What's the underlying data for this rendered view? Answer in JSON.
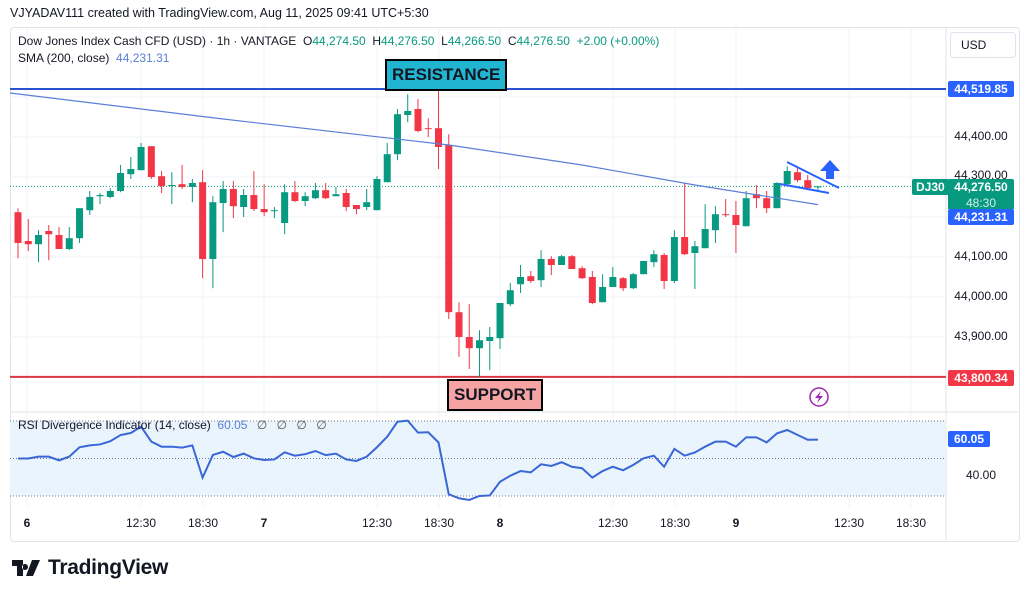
{
  "credit": "VJYADAV111 created with TradingView.com, Aug 11, 2025 09:41 UTC+5:30",
  "legend": {
    "symbol": "Dow Jones Index Cash CFD (USD) · 1h · VANTAGE",
    "o_label": "O",
    "o": "44,274.50",
    "h_label": "H",
    "h": "44,276.50",
    "l_label": "L",
    "l": "44,266.50",
    "c_label": "C",
    "c": "44,276.50",
    "change": "+2.00 (+0.00%)",
    "sma_label": "SMA (200, close)",
    "sma_value": "44,231.31"
  },
  "currency": "USD",
  "annotations": {
    "resistance": "RESISTANCE",
    "support": "SUPPORT"
  },
  "price_labels": {
    "resistance": "44,519.85",
    "support": "43,800.34",
    "last": "44,276.50",
    "countdown": "48:30",
    "sma": "44,231.31",
    "symbol_tag": "DJ30"
  },
  "price_axis": [
    "44,400.00",
    "44,300.00",
    "44,100.00",
    "44,000.00",
    "43,900.00"
  ],
  "rsi": {
    "label": "RSI Divergence Indicator (14, close)",
    "value": "60.05",
    "extras": [
      "∅",
      "∅",
      "∅",
      "∅"
    ],
    "axis": [
      "40.00"
    ],
    "value_label": "60.05"
  },
  "time_axis": [
    "6",
    "12:30",
    "18:30",
    "7",
    "12:30",
    "18:30",
    "8",
    "12:30",
    "18:30",
    "9",
    "12:30",
    "18:30"
  ],
  "logo": "TradingView",
  "colors": {
    "up": "#089981",
    "down": "#f23645",
    "blue": "#2962ff",
    "sma": "#5b7fd6"
  },
  "chart_data": {
    "type": "candlestick",
    "interval": "1h",
    "price_range": [
      43750,
      44550
    ],
    "resistance": 44519.85,
    "support": 43800.34,
    "last_price": 44276.5,
    "ohlc": [
      [
        44212,
        44222,
        44097,
        44135
      ],
      [
        44140,
        44195,
        44115,
        44132
      ],
      [
        44132,
        44167,
        44087,
        44155
      ],
      [
        44165,
        44180,
        44092,
        44157
      ],
      [
        44155,
        44175,
        44120,
        44120
      ],
      [
        44120,
        44175,
        44117,
        44147
      ],
      [
        44147,
        44222,
        44135,
        44222
      ],
      [
        44217,
        44265,
        44205,
        44250
      ],
      [
        44252,
        44260,
        44232,
        44255
      ],
      [
        44250,
        44272,
        44247,
        44265
      ],
      [
        44265,
        44330,
        44262,
        44310
      ],
      [
        44307,
        44350,
        44295,
        44320
      ],
      [
        44317,
        44385,
        44317,
        44375
      ],
      [
        44377,
        44377,
        44295,
        44300
      ],
      [
        44302,
        44315,
        44260,
        44277
      ],
      [
        44278,
        44312,
        44232,
        44280
      ],
      [
        44282,
        44330,
        44270,
        44275
      ],
      [
        44275,
        44295,
        44237,
        44285
      ],
      [
        44287,
        44317,
        44047,
        44095
      ],
      [
        44095,
        44252,
        44022,
        44237
      ],
      [
        44235,
        44290,
        44162,
        44270
      ],
      [
        44270,
        44290,
        44197,
        44227
      ],
      [
        44225,
        44270,
        44200,
        44255
      ],
      [
        44255,
        44315,
        44215,
        44220
      ],
      [
        44220,
        44282,
        44202,
        44212
      ],
      [
        44215,
        44225,
        44197,
        44217
      ],
      [
        44185,
        44282,
        44157,
        44262
      ],
      [
        44262,
        44290,
        44237,
        44240
      ],
      [
        44240,
        44262,
        44227,
        44252
      ],
      [
        44247,
        44285,
        44245,
        44267
      ],
      [
        44267,
        44285,
        44245,
        44247
      ],
      [
        44252,
        44275,
        44252,
        44257
      ],
      [
        44260,
        44270,
        44215,
        44225
      ],
      [
        44230,
        44230,
        44207,
        44220
      ],
      [
        44225,
        44270,
        44217,
        44237
      ],
      [
        44217,
        44302,
        44217,
        44295
      ],
      [
        44287,
        44385,
        44287,
        44357
      ],
      [
        44357,
        44470,
        44342,
        44457
      ],
      [
        44455,
        44507,
        44437,
        44465
      ],
      [
        44470,
        44495,
        44412,
        44415
      ],
      [
        44422,
        44447,
        44400,
        44420
      ],
      [
        44422,
        44517,
        44320,
        44375
      ],
      [
        44380,
        44407,
        43945,
        43962
      ],
      [
        43962,
        43987,
        43850,
        43900
      ],
      [
        43900,
        43982,
        43820,
        43872
      ],
      [
        43872,
        43917,
        43800,
        43892
      ],
      [
        43890,
        43925,
        43817,
        43900
      ],
      [
        43897,
        43985,
        43870,
        43985
      ],
      [
        43982,
        44035,
        43977,
        44017
      ],
      [
        44032,
        44080,
        44010,
        44050
      ],
      [
        44052,
        44065,
        44035,
        44040
      ],
      [
        44042,
        44117,
        44025,
        44095
      ],
      [
        44095,
        44102,
        44055,
        44080
      ],
      [
        44080,
        44105,
        44080,
        44102
      ],
      [
        44102,
        44105,
        44070,
        44070
      ],
      [
        44072,
        44077,
        44045,
        44047
      ],
      [
        44050,
        44065,
        43982,
        43985
      ],
      [
        43987,
        44057,
        43987,
        44025
      ],
      [
        44025,
        44075,
        44025,
        44050
      ],
      [
        44047,
        44050,
        44015,
        44022
      ],
      [
        44022,
        44060,
        44020,
        44057
      ],
      [
        44057,
        44090,
        44057,
        44090
      ],
      [
        44087,
        44117,
        44075,
        44107
      ],
      [
        44105,
        44110,
        44020,
        44040
      ],
      [
        44040,
        44167,
        44035,
        44150
      ],
      [
        44150,
        44285,
        44105,
        44107
      ],
      [
        44110,
        44140,
        44020,
        44127
      ],
      [
        44122,
        44232,
        44122,
        44170
      ],
      [
        44167,
        44227,
        44135,
        44207
      ],
      [
        44207,
        44245,
        44200,
        44205
      ],
      [
        44205,
        44240,
        44110,
        44180
      ],
      [
        44177,
        44265,
        44177,
        44247
      ],
      [
        44257,
        44280,
        44222,
        44247
      ],
      [
        44247,
        44265,
        44210,
        44222
      ],
      [
        44222,
        44287,
        44222,
        44285
      ],
      [
        44282,
        44327,
        44282,
        44315
      ],
      [
        44312,
        44322,
        44287,
        44292
      ],
      [
        44292,
        44305,
        44267,
        44272
      ],
      [
        44274.5,
        44276.5,
        44266.5,
        44276.5
      ]
    ],
    "sma200": [
      [
        -1,
        44510
      ],
      [
        20,
        44445
      ],
      [
        42,
        44380
      ],
      [
        55,
        44330
      ],
      [
        66,
        44280
      ],
      [
        78,
        44231
      ]
    ],
    "rsi_values": [
      50,
      50,
      51,
      51,
      49,
      51,
      56,
      57,
      57.5,
      59.2,
      62.5,
      63.6,
      67,
      59,
      56.3,
      56.3,
      55.8,
      57,
      39.8,
      51.9,
      53.6,
      50.8,
      52.6,
      50.1,
      49.2,
      49.5,
      53.3,
      51.5,
      52.3,
      54,
      51.8,
      52.6,
      49.5,
      48.7,
      51,
      56,
      61.6,
      69.6,
      70.2,
      63.8,
      64,
      58.6,
      30.9,
      28.8,
      27.9,
      30,
      30.3,
      37.6,
      40.8,
      43.3,
      42.6,
      46.9,
      46,
      48,
      45.6,
      44.8,
      39.8,
      43.3,
      45.6,
      43.7,
      46.6,
      50.1,
      51.5,
      45.6,
      55.1,
      51.5,
      53.2,
      56.3,
      59,
      59,
      56.3,
      61.3,
      61.3,
      58.6,
      63.4,
      65.2,
      62.6,
      60,
      60.05
    ],
    "rsi_levels": [
      70,
      50,
      30
    ]
  }
}
